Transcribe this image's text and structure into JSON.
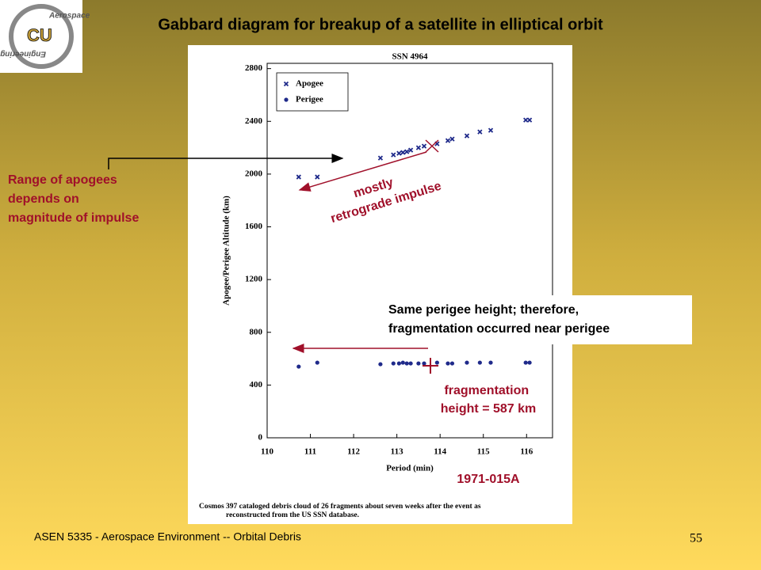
{
  "slide": {
    "title": "Gabbard diagram for breakup of a satellite in elliptical orbit",
    "logo_text": [
      "Aerospace",
      "Engineering",
      "CU"
    ],
    "apogee_note": [
      "Range of apogees",
      "depends on",
      "magnitude of impulse"
    ],
    "impulse_note": [
      "mostly",
      "retrograde impulse"
    ],
    "perigee_note": [
      "Same perigee height; therefore,",
      "fragmentation occurred near perigee"
    ],
    "height_note": [
      "fragmentation",
      "height = 587 km"
    ],
    "designator": "1971-015A",
    "caption": [
      "Cosmos 397 cataloged debris cloud of 26 fragments about seven weeks after the event as",
      "reconstructed from the US SSN database."
    ],
    "footer": "ASEN 5335 - Aerospace Environment -- Orbital Debris",
    "page_number": "55"
  },
  "chart_data": {
    "type": "scatter",
    "title": "SSN 4964",
    "x_label": "Period (min)",
    "y_label": "Apogee/Perigee Altitude (km)",
    "xlim": [
      110,
      116.6
    ],
    "ylim": [
      0,
      2840
    ],
    "xticks": [
      110,
      111,
      112,
      113,
      114,
      115,
      116
    ],
    "yticks": [
      0,
      400,
      800,
      1200,
      1600,
      2000,
      2400,
      2800
    ],
    "legend": "upper left",
    "series": [
      {
        "name": "Apogee",
        "color": "#1f2a8a",
        "marker": "x",
        "x": [
          110.73,
          111.16,
          112.62,
          112.92,
          113.05,
          113.14,
          113.23,
          113.32,
          113.5,
          113.63,
          113.93,
          114.18,
          114.28,
          114.62,
          114.92,
          115.17,
          115.98,
          116.07
        ],
        "values": [
          1978,
          1978,
          2122,
          2146,
          2158,
          2164,
          2170,
          2182,
          2200,
          2212,
          2230,
          2254,
          2266,
          2290,
          2320,
          2332,
          2410,
          2410
        ]
      },
      {
        "name": "Perigee",
        "color": "#1f2a8a",
        "marker": "circle",
        "x": [
          110.73,
          111.16,
          112.62,
          112.92,
          113.05,
          113.14,
          113.23,
          113.32,
          113.5,
          113.63,
          113.93,
          114.18,
          114.28,
          114.62,
          114.92,
          115.17,
          115.98,
          116.07
        ],
        "values": [
          540,
          570,
          558,
          564,
          564,
          570,
          564,
          564,
          564,
          564,
          570,
          564,
          564,
          570,
          570,
          570,
          570,
          570
        ]
      }
    ]
  }
}
